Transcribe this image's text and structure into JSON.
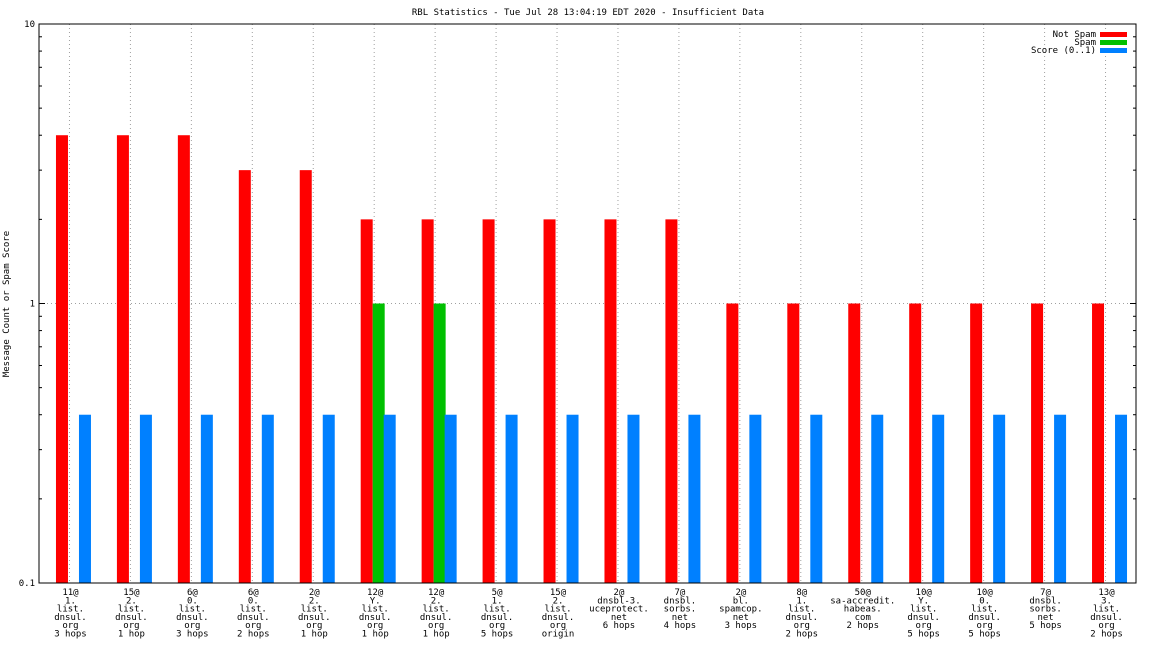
{
  "chart_data": {
    "type": "bar",
    "title": "RBL Statistics - Tue Jul 28 13:04:19 EDT 2020 - Insufficient Data",
    "xlabel": "",
    "ylabel": "Message Count or Spam Score",
    "yscale": "log",
    "ylim": [
      0.1,
      10
    ],
    "yticks": [
      {
        "value": 0.1,
        "label": "0.1"
      },
      {
        "value": 1,
        "label": "1"
      },
      {
        "value": 10,
        "label": "10"
      }
    ],
    "grid": true,
    "legend_position": "top-right",
    "categories": [
      [
        "11@",
        "1.",
        "list.",
        "dnsul.",
        "org",
        "3 hops"
      ],
      [
        "15@",
        "2.",
        "list.",
        "dnsul.",
        "org",
        "1 hop"
      ],
      [
        "6@",
        "0.",
        "list.",
        "dnsul.",
        "org",
        "3 hops"
      ],
      [
        "6@",
        "0.",
        "list.",
        "dnsul.",
        "org",
        "2 hops"
      ],
      [
        "2@",
        "2.",
        "list.",
        "dnsul.",
        "org",
        "1 hop"
      ],
      [
        "12@",
        "Y.",
        "list.",
        "dnsul.",
        "org",
        "1 hop"
      ],
      [
        "12@",
        "2.",
        "list.",
        "dnsul.",
        "org",
        "1 hop"
      ],
      [
        "5@",
        "1.",
        "list.",
        "dnsul.",
        "org",
        "5 hops"
      ],
      [
        "15@",
        "2.",
        "list.",
        "dnsul.",
        "org",
        "origin"
      ],
      [
        "2@",
        "dnsbl-3.",
        "uceprotect.",
        "net",
        "6 hops"
      ],
      [
        "7@",
        "dnsbl.",
        "sorbs.",
        "net",
        "4 hops"
      ],
      [
        "2@",
        "bl.",
        "spamcop.",
        "net",
        "3 hops"
      ],
      [
        "8@",
        "1.",
        "list.",
        "dnsul.",
        "org",
        "2 hops"
      ],
      [
        "50@",
        "sa-accredit.",
        "habeas.",
        "com",
        "2 hops"
      ],
      [
        "10@",
        "Y.",
        "list.",
        "dnsul.",
        "org",
        "5 hops"
      ],
      [
        "10@",
        "0.",
        "list.",
        "dnsul.",
        "org",
        "5 hops"
      ],
      [
        "7@",
        "dnsbl.",
        "sorbs.",
        "net",
        "5 hops"
      ],
      [
        "13@",
        "3.",
        "list.",
        "dnsul.",
        "org",
        "2 hops"
      ]
    ],
    "series": [
      {
        "name": "Not Spam",
        "color": "#ff0000",
        "values": [
          4,
          4,
          4,
          3,
          3,
          2,
          2,
          2,
          2,
          2,
          2,
          1,
          1,
          1,
          1,
          1,
          1,
          1
        ]
      },
      {
        "name": "Spam",
        "color": "#00c000",
        "values": [
          0,
          0,
          0,
          0,
          0,
          1,
          1,
          0,
          0,
          0,
          0,
          0,
          0,
          0,
          0,
          0,
          0,
          0
        ]
      },
      {
        "name": "Score (0..1)",
        "color": "#0080ff",
        "values": [
          0.4,
          0.4,
          0.4,
          0.4,
          0.4,
          0.4,
          0.4,
          0.4,
          0.4,
          0.4,
          0.4,
          0.4,
          0.4,
          0.4,
          0.4,
          0.4,
          0.4,
          0.4
        ]
      }
    ]
  }
}
